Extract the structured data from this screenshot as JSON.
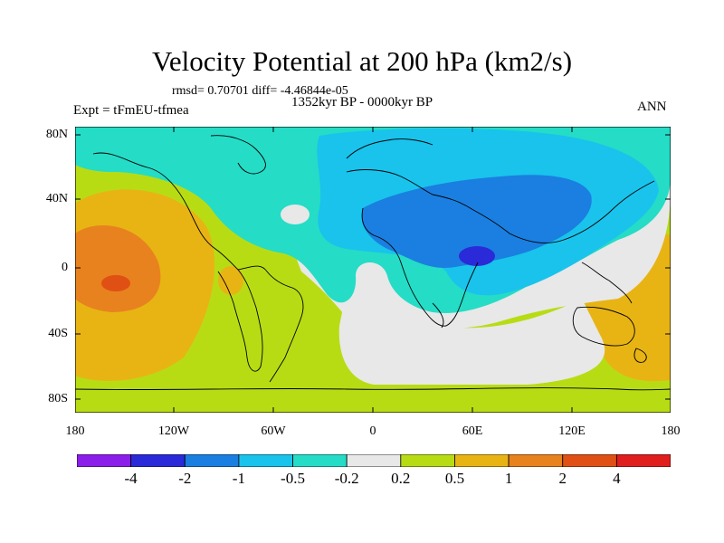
{
  "title": "Velocity Potential at 200 hPa (km2/s)",
  "stats": "rmsd= 0.70701 diff= -4.46844e-05",
  "period": "1352kyr BP - 0000kyr BP",
  "experiment": "Expt = tFmEU-tfmea",
  "season": "ANN",
  "lat_ticks": [
    "80N",
    "40N",
    "0",
    "40S",
    "80S"
  ],
  "lon_ticks": [
    "180",
    "120W",
    "60W",
    "0",
    "60E",
    "120E",
    "180"
  ],
  "colorbar": {
    "labels": [
      "-4",
      "-2",
      "-1",
      "-0.5",
      "-0.2",
      "0.2",
      "0.5",
      "1",
      "2",
      "4"
    ],
    "colors": [
      "#8c1eea",
      "#2a2ad8",
      "#1a7fe0",
      "#19c3ec",
      "#25dcc6",
      "#e8e8e8",
      "#b8dc14",
      "#e8b414",
      "#e8821e",
      "#e05014",
      "#e01e1e"
    ]
  }
}
